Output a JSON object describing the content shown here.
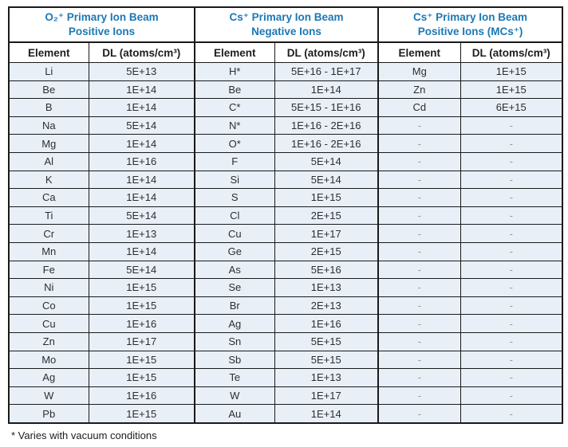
{
  "colors": {
    "accent_blue": "#1C78B4",
    "row_background": "#E9EFF7",
    "header_background": "#FFFFFF",
    "border": "#1A1A1A",
    "text": "#2E2E2E",
    "empty_dash": "#9A9A9A"
  },
  "table": {
    "groups": [
      {
        "title_line1": "O₂⁺ Primary Ion Beam",
        "title_line2": "Positive Ions"
      },
      {
        "title_line1": "Cs⁺ Primary Ion Beam",
        "title_line2": "Negative Ions"
      },
      {
        "title_line1": "Cs⁺ Primary Ion Beam",
        "title_line2": "Positive Ions (MCs⁺)"
      }
    ],
    "col_headers": {
      "element": "Element",
      "dl": "DL (atoms/cm³)"
    },
    "footnote": "* Varies with vacuum conditions"
  },
  "chart_data": {
    "type": "table",
    "column_groups": [
      "O₂⁺ Primary Ion Beam Positive Ions",
      "Cs⁺ Primary Ion Beam Negative Ions",
      "Cs⁺ Primary Ion Beam Positive Ions (MCs⁺)"
    ],
    "columns": [
      "Element",
      "DL (atoms/cm³)",
      "Element",
      "DL (atoms/cm³)",
      "Element",
      "DL (atoms/cm³)"
    ],
    "rows": [
      [
        "Li",
        "5E+13",
        "H*",
        "5E+16 - 1E+17",
        "Mg",
        "1E+15"
      ],
      [
        "Be",
        "1E+14",
        "Be",
        "1E+14",
        "Zn",
        "1E+15"
      ],
      [
        "B",
        "1E+14",
        "C*",
        "5E+15 - 1E+16",
        "Cd",
        "6E+15"
      ],
      [
        "Na",
        "5E+14",
        "N*",
        "1E+16 - 2E+16",
        "-",
        "-"
      ],
      [
        "Mg",
        "1E+14",
        "O*",
        "1E+16 - 2E+16",
        "-",
        "-"
      ],
      [
        "Al",
        "1E+16",
        "F",
        "5E+14",
        "-",
        "-"
      ],
      [
        "K",
        "1E+14",
        "Si",
        "5E+14",
        "-",
        "-"
      ],
      [
        "Ca",
        "1E+14",
        "S",
        "1E+15",
        "-",
        "-"
      ],
      [
        "Ti",
        "5E+14",
        "Cl",
        "2E+15",
        "-",
        "-"
      ],
      [
        "Cr",
        "1E+13",
        "Cu",
        "1E+17",
        "-",
        "-"
      ],
      [
        "Mn",
        "1E+14",
        "Ge",
        "2E+15",
        "-",
        "-"
      ],
      [
        "Fe",
        "5E+14",
        "As",
        "5E+16",
        "-",
        "-"
      ],
      [
        "Ni",
        "1E+15",
        "Se",
        "1E+13",
        "-",
        "-"
      ],
      [
        "Co",
        "1E+15",
        "Br",
        "2E+13",
        "-",
        "-"
      ],
      [
        "Cu",
        "1E+16",
        "Ag",
        "1E+16",
        "-",
        "-"
      ],
      [
        "Zn",
        "1E+17",
        "Sn",
        "5E+15",
        "-",
        "-"
      ],
      [
        "Mo",
        "1E+15",
        "Sb",
        "5E+15",
        "-",
        "-"
      ],
      [
        "Ag",
        "1E+15",
        "Te",
        "1E+13",
        "-",
        "-"
      ],
      [
        "W",
        "1E+16",
        "W",
        "1E+17",
        "-",
        "-"
      ],
      [
        "Pb",
        "1E+15",
        "Au",
        "1E+14",
        "-",
        "-"
      ]
    ],
    "footnote": "* Varies with vacuum conditions",
    "layout": {
      "grid": true,
      "striped": false
    }
  }
}
